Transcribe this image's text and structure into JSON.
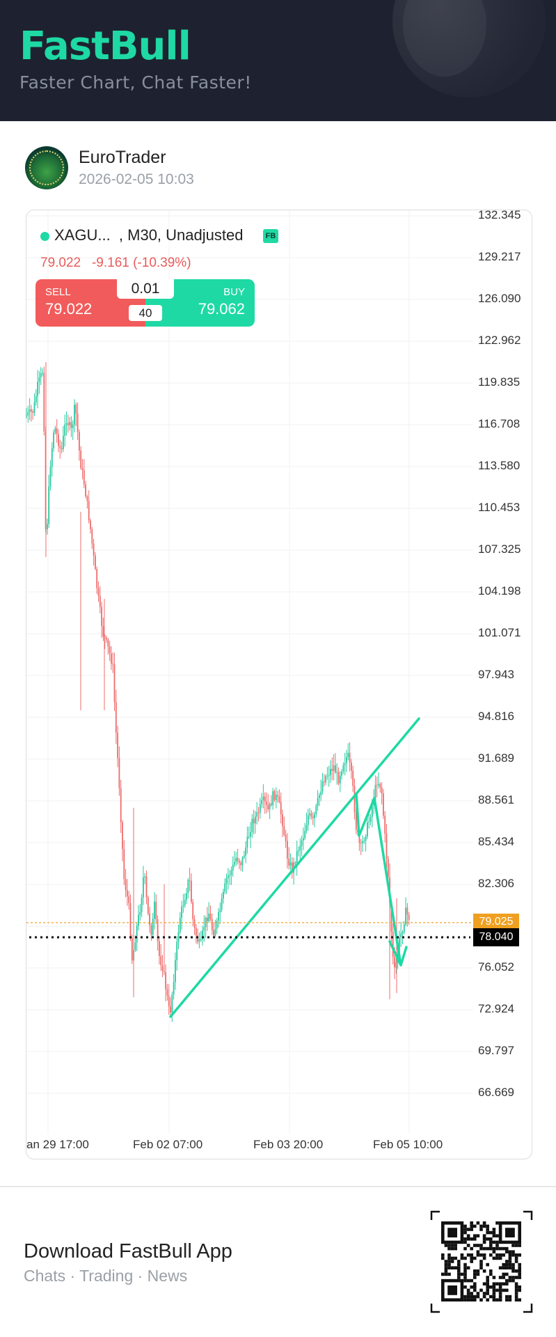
{
  "header": {
    "logo": "FastBull",
    "tagline": "Faster Chart, Chat Faster!"
  },
  "post": {
    "user_name": "EuroTrader",
    "timestamp": "2026-02-05 10:03"
  },
  "chart_header": {
    "symbol_info": "XAGU...  , M30, Unadjusted",
    "badge": "FB",
    "price_line": "79.022   -9.161 (-10.39%)"
  },
  "trade_panel": {
    "sell_label": "SELL",
    "sell_price": "79.022",
    "buy_label": "BUY",
    "buy_price": "79.062",
    "lot": "0.01",
    "spread": "40"
  },
  "chart_data": {
    "type": "candlestick",
    "y_ticks": [
      "132.345",
      "129.217",
      "126.090",
      "122.962",
      "119.835",
      "116.708",
      "113.580",
      "110.453",
      "107.325",
      "104.198",
      "101.071",
      "97.943",
      "94.816",
      "91.689",
      "88.561",
      "85.434",
      "82.306",
      "79.025",
      "76.052",
      "72.924",
      "69.797",
      "66.669"
    ],
    "x_ticks": [
      "an 29 17:00",
      "Feb 02 07:00",
      "Feb 03 20:00",
      "Feb 05 10:00"
    ],
    "current_price_tag": "79.025",
    "horizontal_line_tag": "78.040",
    "ylim": [
      66.669,
      132.345
    ],
    "colors": {
      "up": "#26c9a0",
      "down": "#ef6b6b",
      "drawing": "#1ed9a4",
      "price_line": "#f0a020"
    }
  },
  "footer": {
    "download_title": "Download FastBull App",
    "download_sub": "Chats · Trading · News"
  }
}
